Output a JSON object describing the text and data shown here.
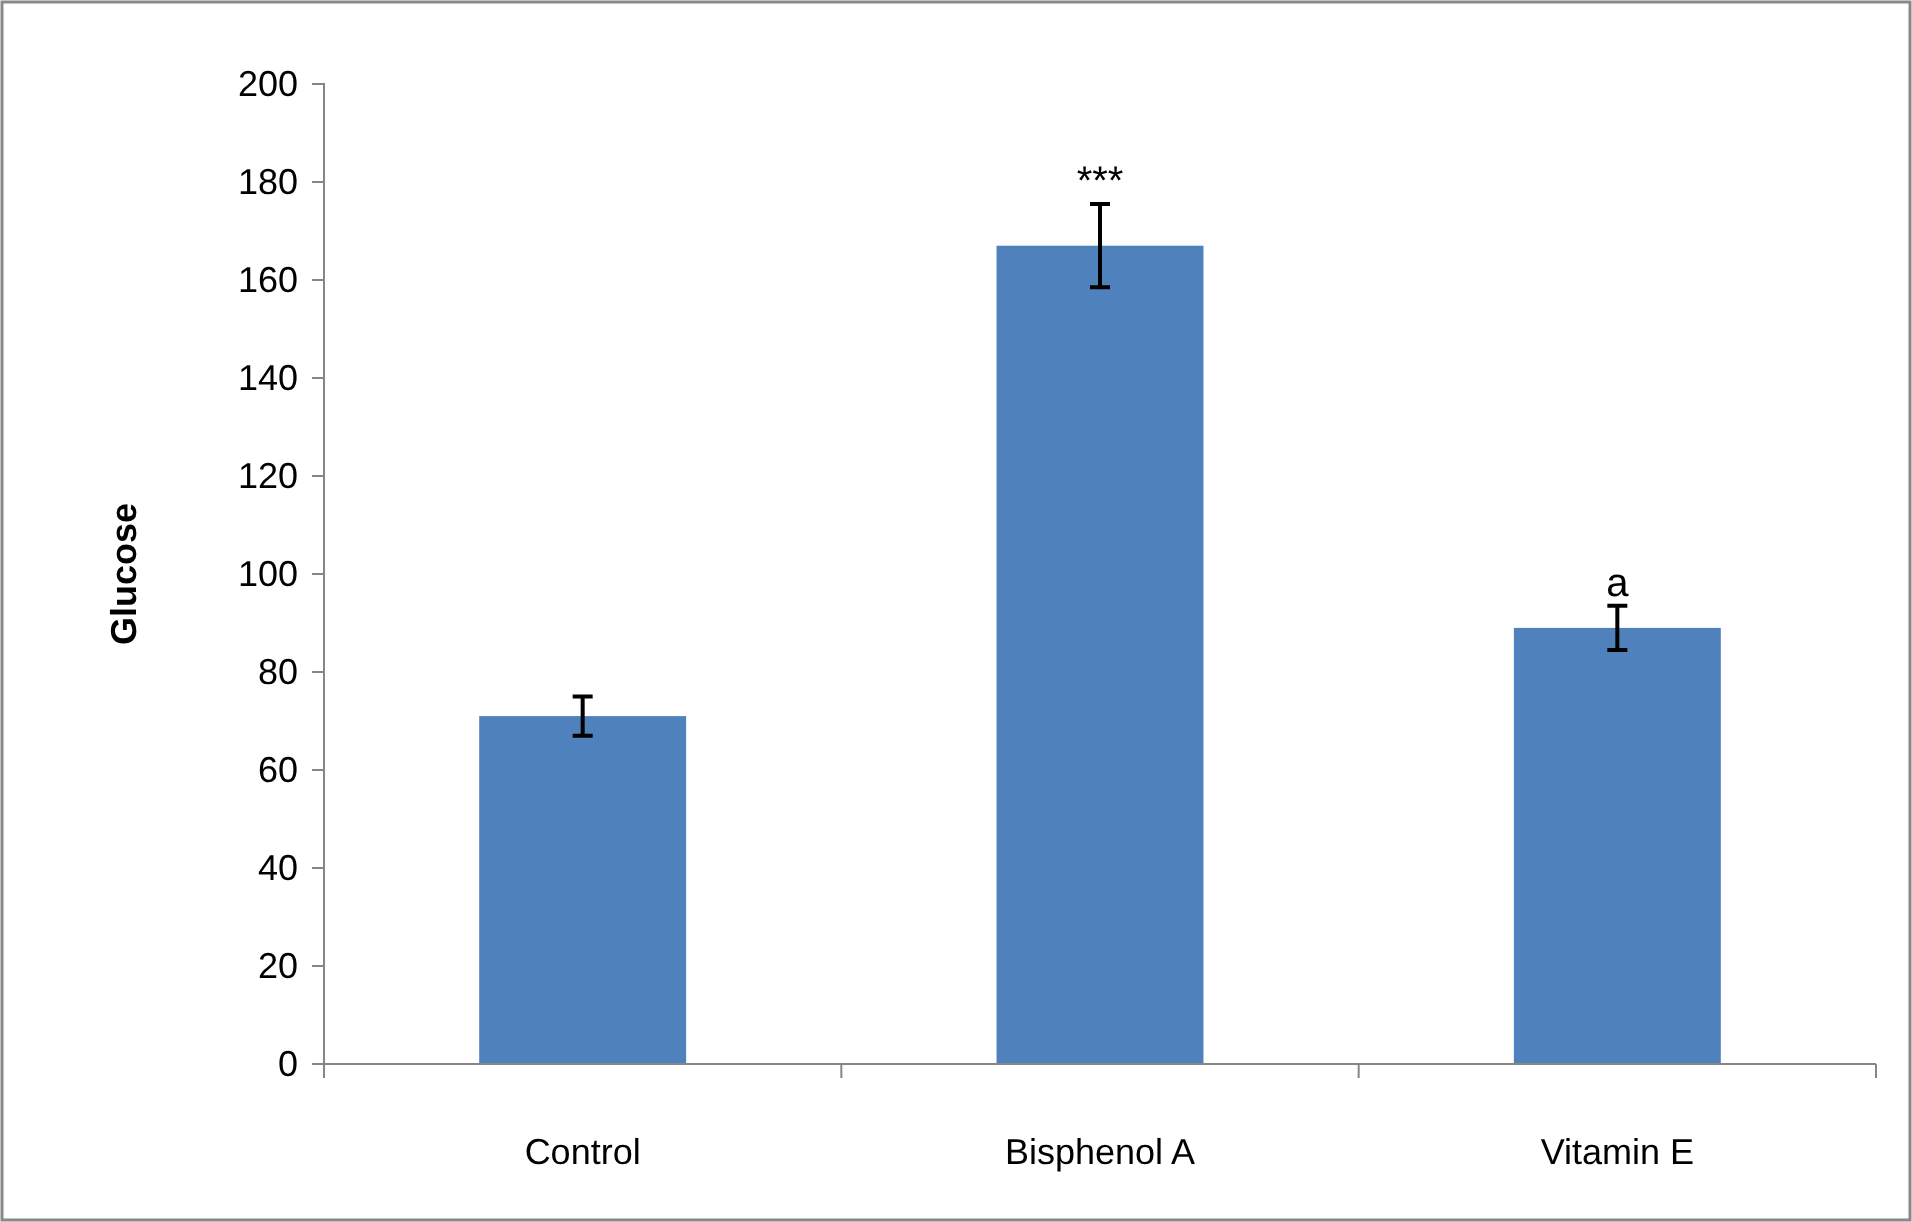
{
  "chart_data": {
    "type": "bar",
    "ylabel": "Glucose",
    "categories": [
      "Control",
      "Bisphenol A",
      "Vitamin E"
    ],
    "values": [
      71,
      167,
      89
    ],
    "errors": [
      4,
      8.5,
      4.5
    ],
    "color": "#4f81bd",
    "ylim": [
      0,
      200
    ],
    "yticks": [
      0,
      20,
      40,
      60,
      80,
      100,
      120,
      140,
      160,
      180,
      200
    ],
    "grid": false,
    "annotations": [
      {
        "text": "***",
        "x": "Bisphenol A",
        "y": 175.5
      },
      {
        "text": "a",
        "x": "Vitamin E",
        "y": 93.5
      }
    ]
  }
}
